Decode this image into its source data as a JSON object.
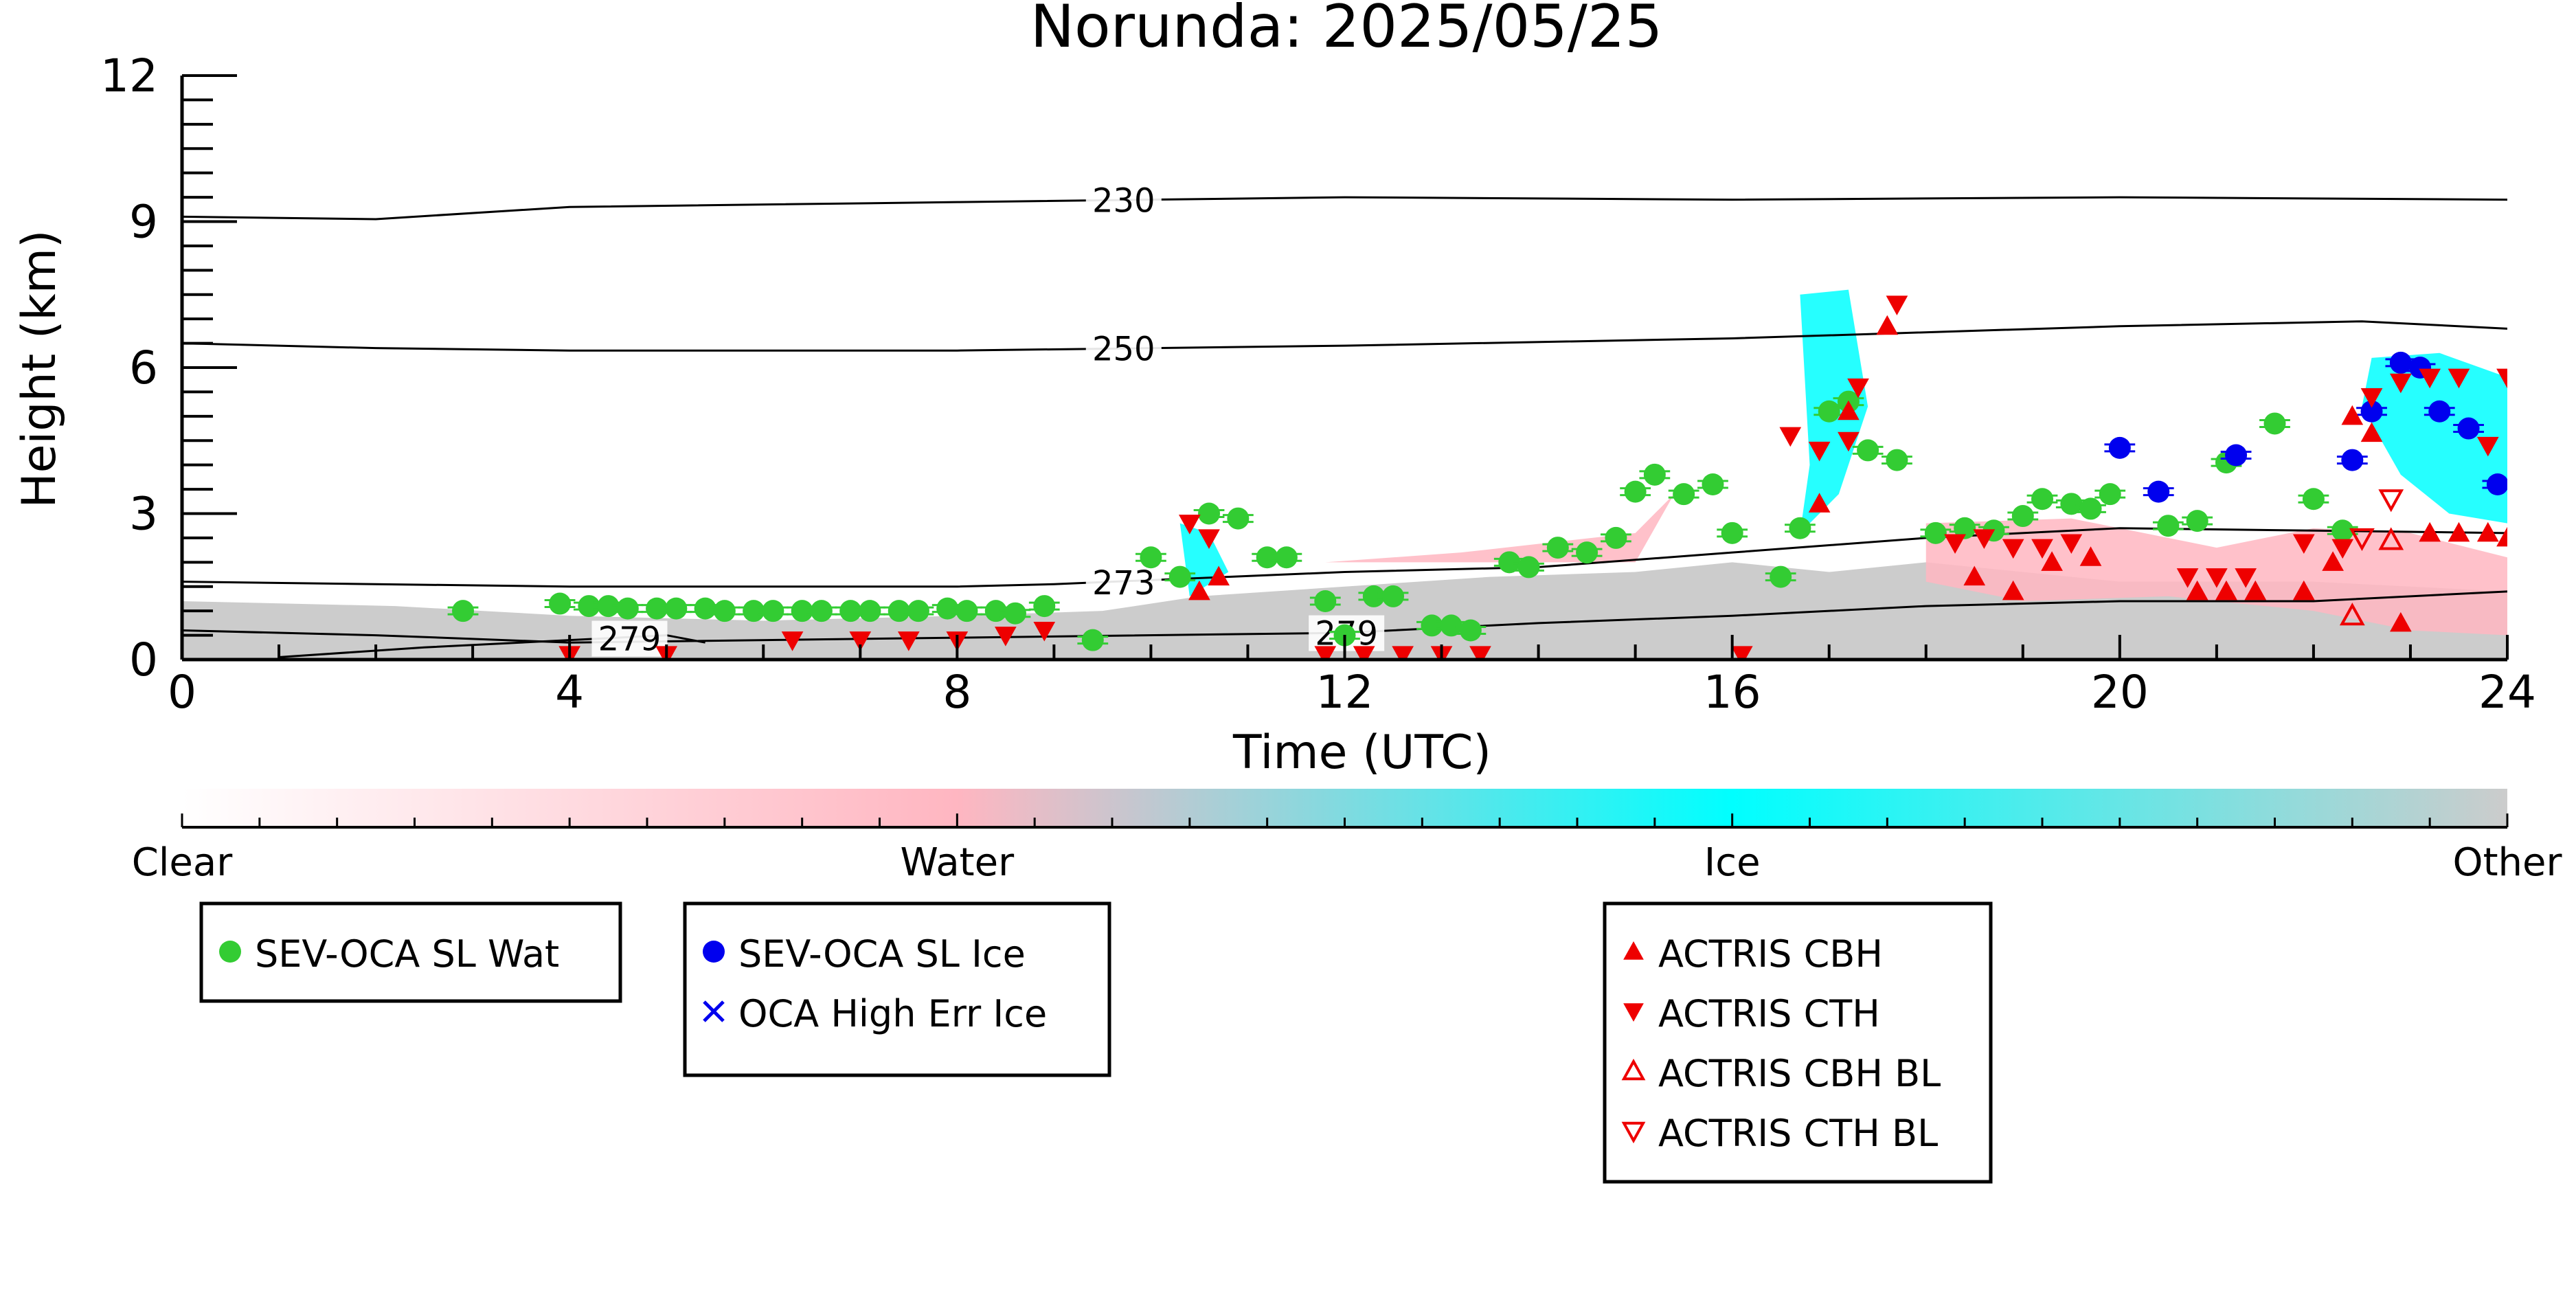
{
  "chart_data": {
    "type": "scatter",
    "title": "Norunda: 2025/05/25",
    "xlabel": "Time (UTC)",
    "ylabel": "Height (km)",
    "xlim": [
      0,
      24
    ],
    "ylim": [
      0,
      12
    ],
    "x_ticks": [
      0,
      4,
      8,
      12,
      16,
      20,
      24
    ],
    "y_ticks": [
      0,
      3,
      6,
      9,
      12
    ],
    "grid": false,
    "colorbar": {
      "labels": [
        "Clear",
        "Water",
        "Ice",
        "Other"
      ],
      "colors": [
        "#ffffff",
        "#ffb6c1",
        "#00ffff",
        "#cccccc"
      ]
    },
    "background_regions": [
      {
        "class": "Other",
        "color": "#cccccc",
        "points": [
          [
            0,
            1.2
          ],
          [
            2.2,
            1.1
          ],
          [
            4,
            0.9
          ],
          [
            6,
            0.8
          ],
          [
            8,
            0.9
          ],
          [
            9.5,
            1.0
          ],
          [
            10.5,
            1.3
          ],
          [
            12,
            1.5
          ],
          [
            13.5,
            1.7
          ],
          [
            15,
            1.8
          ],
          [
            16,
            2.0
          ],
          [
            17,
            1.8
          ],
          [
            18,
            2.0
          ],
          [
            20,
            1.6
          ],
          [
            22,
            1.6
          ],
          [
            24,
            1.4
          ],
          [
            24,
            0
          ],
          [
            0,
            0
          ]
        ]
      },
      {
        "class": "Water",
        "color": "#ffb6c1",
        "points": [
          [
            11.8,
            2.0
          ],
          [
            13.2,
            2.2
          ],
          [
            15,
            2.6
          ],
          [
            15.4,
            3.4
          ],
          [
            15,
            2.0
          ]
        ]
      },
      {
        "class": "Water",
        "color": "#ffb6c1",
        "points": [
          [
            18,
            2.8
          ],
          [
            19.5,
            2.9
          ],
          [
            21,
            2.3
          ],
          [
            22,
            2.7
          ],
          [
            23,
            2.6
          ],
          [
            24,
            2.1
          ],
          [
            24,
            0.5
          ],
          [
            23,
            0.6
          ],
          [
            22,
            1.0
          ],
          [
            20.5,
            1.3
          ],
          [
            19,
            1.2
          ],
          [
            18,
            1.6
          ]
        ]
      },
      {
        "class": "Ice",
        "color": "#00ffff",
        "points": [
          [
            10.3,
            2.8
          ],
          [
            10.6,
            2.6
          ],
          [
            10.8,
            1.8
          ],
          [
            10.4,
            1.3
          ]
        ]
      },
      {
        "class": "Ice",
        "color": "#00ffff",
        "points": [
          [
            16.7,
            7.5
          ],
          [
            17.2,
            7.6
          ],
          [
            17.4,
            5.2
          ],
          [
            17.1,
            3.4
          ],
          [
            16.7,
            2.6
          ],
          [
            16.8,
            4.0
          ]
        ]
      },
      {
        "class": "Ice",
        "color": "#00ffff",
        "points": [
          [
            22.6,
            6.2
          ],
          [
            23.3,
            6.3
          ],
          [
            24,
            5.8
          ],
          [
            24,
            2.8
          ],
          [
            23.4,
            3.0
          ],
          [
            22.9,
            3.8
          ],
          [
            22.5,
            5.2
          ]
        ]
      }
    ],
    "isotherms": [
      {
        "label": "230",
        "label_x": 9.4,
        "x": [
          0,
          2,
          4,
          8,
          12,
          16,
          20,
          24
        ],
        "y": [
          9.1,
          9.05,
          9.3,
          9.4,
          9.5,
          9.45,
          9.5,
          9.45
        ]
      },
      {
        "label": "250",
        "label_x": 9.4,
        "x": [
          0,
          2,
          4,
          8,
          12,
          16,
          20,
          22.5,
          24
        ],
        "y": [
          6.5,
          6.4,
          6.35,
          6.35,
          6.45,
          6.6,
          6.85,
          6.95,
          6.8
        ]
      },
      {
        "label": "273",
        "label_x": 9.4,
        "x": [
          0,
          4,
          8,
          9,
          12,
          14,
          16,
          18,
          20,
          22,
          24
        ],
        "y": [
          1.6,
          1.5,
          1.5,
          1.55,
          1.8,
          1.9,
          2.2,
          2.5,
          2.7,
          2.65,
          2.6
        ]
      },
      {
        "label": "279",
        "label_x": 11.7,
        "x": [
          0,
          2,
          4,
          8,
          12,
          14,
          16,
          18,
          20,
          22,
          24
        ],
        "y": [
          0.6,
          0.5,
          0.35,
          0.45,
          0.55,
          0.75,
          0.9,
          1.1,
          1.2,
          1.2,
          1.4
        ]
      },
      {
        "label": "279",
        "label_x": 4.3,
        "x": [
          1.0,
          2.5,
          4.0,
          5.0,
          5.4
        ],
        "y": [
          0.05,
          0.25,
          0.4,
          0.5,
          0.35
        ]
      }
    ],
    "series": [
      {
        "name": "SEV-OCA SL Wat",
        "marker": "circle",
        "color": "#33cc33",
        "x": [
          2.9,
          3.9,
          4.2,
          4.4,
          4.6,
          4.9,
          5.1,
          5.4,
          5.6,
          5.9,
          6.1,
          6.4,
          6.6,
          6.9,
          7.1,
          7.4,
          7.6,
          7.9,
          8.1,
          8.4,
          8.6,
          8.9,
          9.4,
          10.0,
          10.3,
          10.6,
          10.9,
          11.2,
          11.4,
          11.8,
          12.0,
          12.3,
          12.5,
          12.9,
          13.1,
          13.3,
          13.7,
          13.9,
          14.2,
          14.5,
          14.8,
          15.0,
          15.2,
          15.5,
          15.8,
          16.0,
          16.5,
          16.7,
          17.0,
          17.2,
          17.4,
          17.7,
          18.1,
          18.4,
          18.7,
          19.0,
          19.2,
          19.5,
          19.7,
          19.9,
          20.5,
          20.8,
          21.1,
          21.6,
          22.0,
          22.3
        ],
        "y": [
          1.0,
          1.15,
          1.1,
          1.1,
          1.05,
          1.05,
          1.05,
          1.05,
          1.0,
          1.0,
          1.0,
          1.0,
          1.0,
          1.0,
          1.0,
          1.0,
          1.0,
          1.05,
          1.0,
          1.0,
          0.95,
          1.1,
          0.4,
          2.1,
          1.7,
          3.0,
          2.9,
          2.1,
          2.1,
          1.2,
          0.5,
          1.3,
          1.3,
          0.7,
          0.7,
          0.6,
          2.0,
          1.9,
          2.3,
          2.2,
          2.5,
          3.45,
          3.8,
          3.4,
          3.6,
          2.6,
          1.7,
          2.7,
          5.1,
          5.3,
          4.3,
          4.1,
          2.6,
          2.7,
          2.65,
          2.95,
          3.3,
          3.2,
          3.1,
          3.4,
          2.75,
          2.85,
          4.05,
          4.85,
          3.3,
          2.65
        ]
      },
      {
        "name": "SEV-OCA SL Ice",
        "marker": "circle",
        "color": "#0000ee",
        "x": [
          20.0,
          20.4,
          21.2,
          22.4,
          22.6,
          22.9,
          23.1,
          23.3,
          23.6,
          23.9
        ],
        "y": [
          4.35,
          3.45,
          4.2,
          4.1,
          5.1,
          6.1,
          6.0,
          5.1,
          4.75,
          3.6
        ]
      },
      {
        "name": "OCA High Err Ice",
        "marker": "x",
        "color": "#0000ee",
        "x": [],
        "y": []
      },
      {
        "name": "ACTRIS CBH",
        "marker": "triangle-up",
        "color": "#ee0000",
        "x": [
          10.5,
          10.7,
          16.9,
          17.2,
          17.6,
          18.5,
          18.9,
          19.3,
          19.7,
          20.8,
          21.1,
          21.4,
          21.9,
          22.2,
          22.4,
          22.6,
          22.9,
          23.2,
          23.5,
          23.8,
          24.0
        ],
        "y": [
          1.4,
          1.7,
          3.2,
          5.1,
          6.85,
          1.7,
          1.4,
          2.0,
          2.1,
          1.4,
          1.4,
          1.4,
          1.4,
          2.0,
          5.0,
          4.65,
          0.75,
          2.6,
          2.6,
          2.6,
          2.5
        ]
      },
      {
        "name": "ACTRIS CTH",
        "marker": "triangle-down",
        "color": "#ee0000",
        "x": [
          10.4,
          10.6,
          16.6,
          16.9,
          17.3,
          17.7,
          17.2,
          18.3,
          18.6,
          18.9,
          19.2,
          19.5,
          20.7,
          21.0,
          21.3,
          21.9,
          22.3,
          22.6,
          22.9,
          23.2,
          23.5,
          23.8,
          24.0,
          4.0,
          5.0,
          6.3,
          7.0,
          7.5,
          8.0,
          8.5,
          8.9,
          11.8,
          12.2,
          12.6,
          13.0,
          13.4,
          16.1
        ],
        "y": [
          2.8,
          2.5,
          4.6,
          4.3,
          5.6,
          7.3,
          4.5,
          2.4,
          2.5,
          2.3,
          2.3,
          2.4,
          1.7,
          1.7,
          1.7,
          2.4,
          2.3,
          5.4,
          5.7,
          5.8,
          5.8,
          4.4,
          5.8,
          0.1,
          0.1,
          0.4,
          0.4,
          0.4,
          0.4,
          0.5,
          0.6,
          0.1,
          0.1,
          0.1,
          0.1,
          0.1,
          0.1
        ]
      },
      {
        "name": "ACTRIS CBH BL",
        "marker": "triangle-up-open",
        "color": "#ee0000",
        "x": [
          22.4,
          22.8
        ],
        "y": [
          0.9,
          2.45
        ]
      },
      {
        "name": "ACTRIS CTH BL",
        "marker": "triangle-down-open",
        "color": "#ee0000",
        "x": [
          22.8,
          22.5
        ],
        "y": [
          3.3,
          2.5
        ]
      }
    ],
    "legend_groups": [
      [
        "SEV-OCA SL Wat"
      ],
      [
        "SEV-OCA SL Ice",
        "OCA High Err Ice"
      ],
      [
        "ACTRIS CBH",
        "ACTRIS CTH",
        "ACTRIS CBH BL",
        "ACTRIS CTH BL"
      ]
    ]
  }
}
